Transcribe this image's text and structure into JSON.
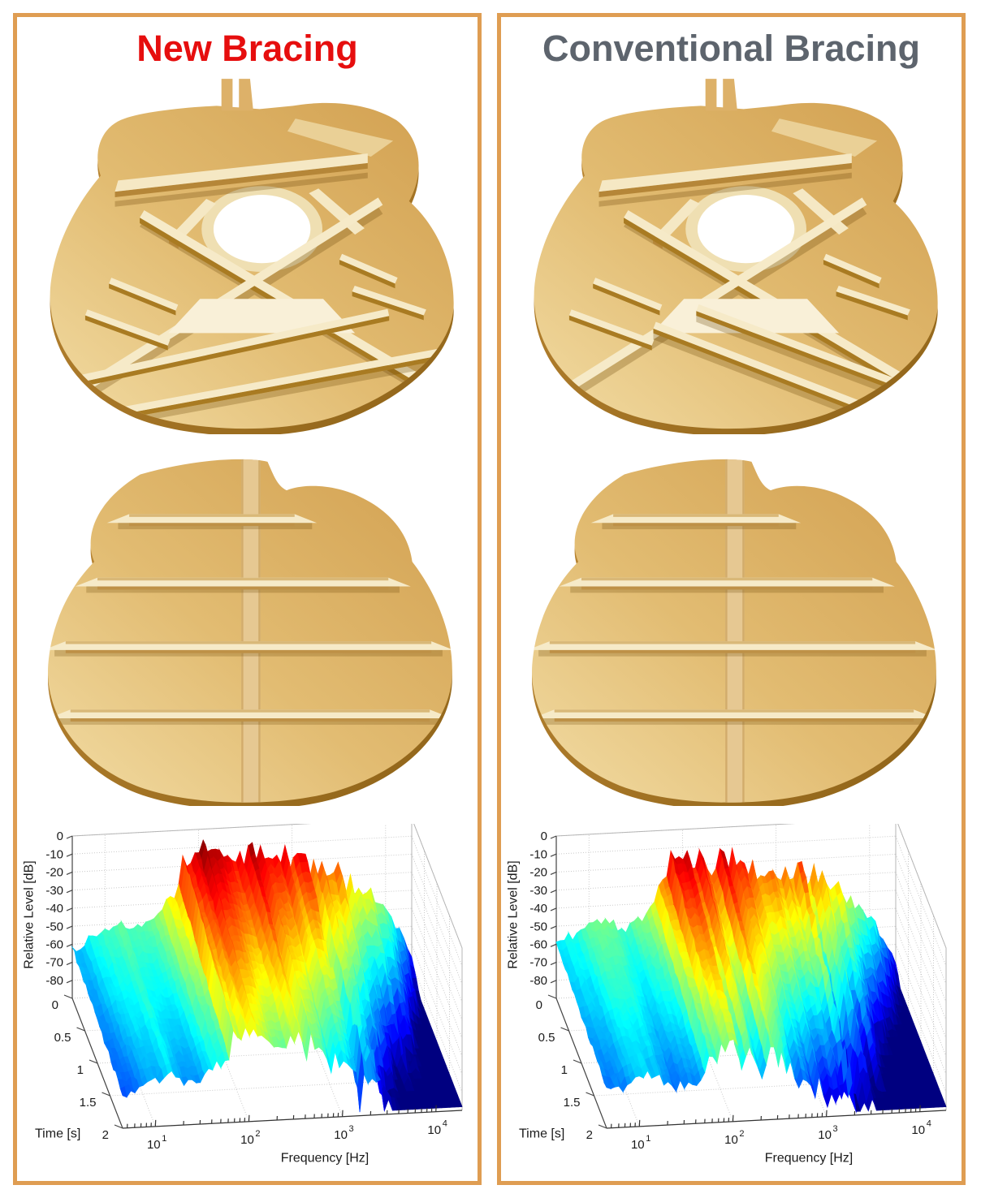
{
  "page": {
    "background": "#ffffff",
    "panel_border_color": "#DF9D52"
  },
  "panels": [
    {
      "id": "new",
      "title": "New Bracing",
      "title_color": "#E60E0E",
      "illustrations": {
        "top": "guitar-soundboard-x-bracing-inside-view",
        "back": "guitar-back-ladder-bracing-inside-view"
      }
    },
    {
      "id": "conventional",
      "title": "Conventional Bracing",
      "title_color": "#5D646D",
      "illustrations": {
        "top": "guitar-soundboard-x-bracing-inside-view",
        "back": "guitar-back-ladder-bracing-inside-view"
      }
    }
  ],
  "chart_data": [
    {
      "type": "surface",
      "variant": "3d-waterfall-spectrogram",
      "panel": "New Bracing",
      "xlabel": "Frequency [Hz]",
      "ylabel": "Time [s]",
      "zlabel": "Relative Level [dB]",
      "x_scale": "log10",
      "x_range_log10": [
        0.65,
        4.28
      ],
      "x_major_ticks": [
        {
          "base": "10",
          "exp": "1",
          "log10": 1
        },
        {
          "base": "10",
          "exp": "2",
          "log10": 2
        },
        {
          "base": "10",
          "exp": "3",
          "log10": 3
        },
        {
          "base": "10",
          "exp": "4",
          "log10": 4
        }
      ],
      "y_range": [
        0,
        2
      ],
      "y_ticks": [
        {
          "v": 0,
          "label": "0"
        },
        {
          "v": 0.5,
          "label": "0.5"
        },
        {
          "v": 1,
          "label": "1"
        },
        {
          "v": 1.5,
          "label": "1.5"
        },
        {
          "v": 2,
          "label": "2"
        }
      ],
      "z_range": [
        -90,
        0
      ],
      "z_ticks": [
        {
          "v": 0,
          "label": "0"
        },
        {
          "v": -10,
          "label": "-10"
        },
        {
          "v": -20,
          "label": "-20"
        },
        {
          "v": -30,
          "label": "-30"
        },
        {
          "v": -40,
          "label": "-40"
        },
        {
          "v": -50,
          "label": "-50"
        },
        {
          "v": -60,
          "label": "-60"
        },
        {
          "v": -70,
          "label": "-70"
        },
        {
          "v": -80,
          "label": "-80"
        }
      ],
      "colormap": "jet",
      "view": {
        "azimuth": -37.5,
        "elevation": 30
      },
      "grid": true,
      "envelope_db_t0": [
        [
          0.65,
          -62
        ],
        [
          0.95,
          -54
        ],
        [
          1.15,
          -50
        ],
        [
          1.4,
          -51
        ],
        [
          1.6,
          -44
        ],
        [
          1.75,
          -32
        ],
        [
          1.88,
          -14
        ],
        [
          1.98,
          -8
        ],
        [
          2.1,
          -13
        ],
        [
          2.25,
          -17
        ],
        [
          2.45,
          -15
        ],
        [
          2.65,
          -17
        ],
        [
          2.85,
          -18
        ],
        [
          3.05,
          -21
        ],
        [
          3.3,
          -25
        ],
        [
          3.55,
          -31
        ],
        [
          3.8,
          -40
        ],
        [
          4.0,
          -50
        ],
        [
          4.15,
          -62
        ],
        [
          4.28,
          -78
        ]
      ],
      "decay_db_per_s": [
        [
          0.65,
          5
        ],
        [
          1.2,
          6
        ],
        [
          1.6,
          9
        ],
        [
          1.9,
          13
        ],
        [
          2.2,
          15
        ],
        [
          2.6,
          17
        ],
        [
          3.0,
          21
        ],
        [
          3.4,
          26
        ],
        [
          3.8,
          32
        ],
        [
          4.28,
          38
        ]
      ],
      "ridge": {
        "band": [
          1.7,
          3.7
        ],
        "amp_in_db": 7,
        "amp_out_db": 2.5
      },
      "hf_jitter": {
        "start_log10": 3.1,
        "amp_db": 5
      },
      "noise_seed": 13
    },
    {
      "type": "surface",
      "variant": "3d-waterfall-spectrogram",
      "panel": "Conventional Bracing",
      "xlabel": "Frequency [Hz]",
      "ylabel": "Time [s]",
      "zlabel": "Relative Level [dB]",
      "x_scale": "log10",
      "x_range_log10": [
        0.65,
        4.28
      ],
      "x_major_ticks": [
        {
          "base": "10",
          "exp": "1",
          "log10": 1
        },
        {
          "base": "10",
          "exp": "2",
          "log10": 2
        },
        {
          "base": "10",
          "exp": "3",
          "log10": 3
        },
        {
          "base": "10",
          "exp": "4",
          "log10": 4
        }
      ],
      "y_range": [
        0,
        2
      ],
      "y_ticks": [
        {
          "v": 0,
          "label": "0"
        },
        {
          "v": 0.5,
          "label": "0.5"
        },
        {
          "v": 1,
          "label": "1"
        },
        {
          "v": 1.5,
          "label": "1.5"
        },
        {
          "v": 2,
          "label": "2"
        }
      ],
      "z_range": [
        -90,
        0
      ],
      "z_ticks": [
        {
          "v": 0,
          "label": "0"
        },
        {
          "v": -10,
          "label": "-10"
        },
        {
          "v": -20,
          "label": "-20"
        },
        {
          "v": -30,
          "label": "-30"
        },
        {
          "v": -40,
          "label": "-40"
        },
        {
          "v": -50,
          "label": "-50"
        },
        {
          "v": -60,
          "label": "-60"
        },
        {
          "v": -70,
          "label": "-70"
        },
        {
          "v": -80,
          "label": "-80"
        }
      ],
      "colormap": "jet",
      "view": {
        "azimuth": -37.5,
        "elevation": 30
      },
      "grid": true,
      "envelope_db_t0": [
        [
          0.65,
          -60
        ],
        [
          0.95,
          -52
        ],
        [
          1.15,
          -50
        ],
        [
          1.4,
          -53
        ],
        [
          1.6,
          -46
        ],
        [
          1.75,
          -35
        ],
        [
          1.88,
          -18
        ],
        [
          1.98,
          -11
        ],
        [
          2.1,
          -17
        ],
        [
          2.25,
          -22
        ],
        [
          2.45,
          -19
        ],
        [
          2.65,
          -22
        ],
        [
          2.85,
          -23
        ],
        [
          3.05,
          -26
        ],
        [
          3.3,
          -29
        ],
        [
          3.55,
          -35
        ],
        [
          3.8,
          -45
        ],
        [
          4.0,
          -55
        ],
        [
          4.15,
          -66
        ],
        [
          4.28,
          -80
        ]
      ],
      "decay_db_per_s": [
        [
          0.65,
          5
        ],
        [
          1.2,
          7
        ],
        [
          1.6,
          10
        ],
        [
          1.9,
          16
        ],
        [
          2.2,
          19
        ],
        [
          2.6,
          21
        ],
        [
          3.0,
          25
        ],
        [
          3.4,
          30
        ],
        [
          3.8,
          36
        ],
        [
          4.28,
          42
        ]
      ],
      "ridge": {
        "band": [
          1.7,
          3.7
        ],
        "amp_in_db": 7,
        "amp_out_db": 2.5
      },
      "hf_jitter": {
        "start_log10": 3.1,
        "amp_db": 5
      },
      "noise_seed": 47
    }
  ]
}
